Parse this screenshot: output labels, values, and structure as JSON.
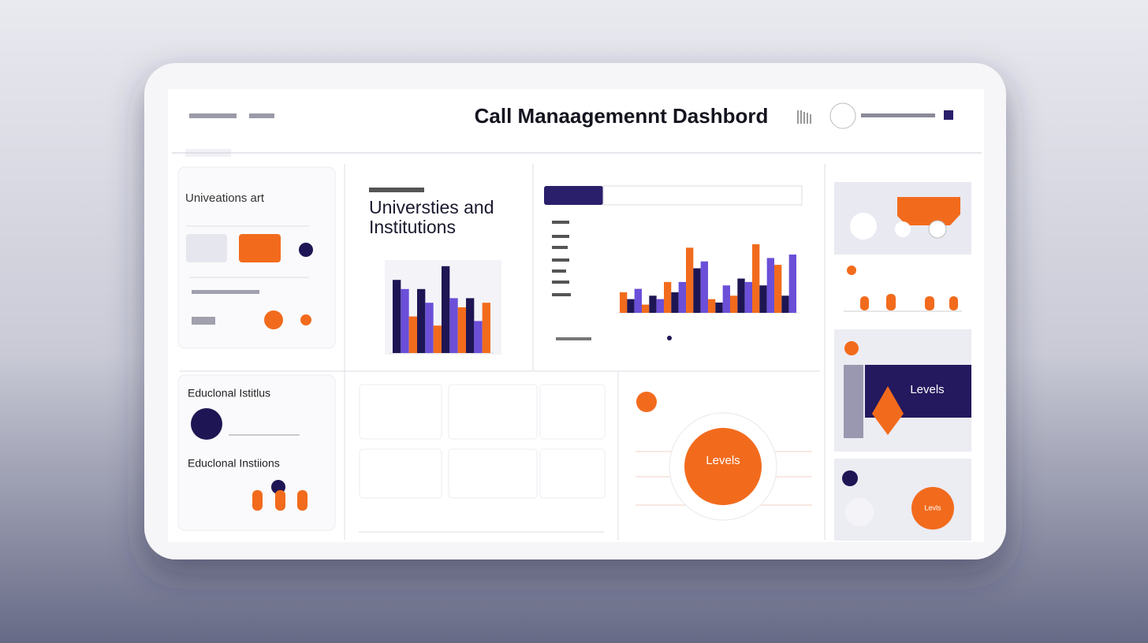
{
  "header": {
    "title": "Call Manaagemennt Dashbord"
  },
  "panels": {
    "univ_card": {
      "title": "Univeations art"
    },
    "institutions": {
      "title_line1": "Universties and",
      "title_line2": "Institutions"
    },
    "edu_top": {
      "title": "Educlonal Istitlus"
    },
    "edu_bottom": {
      "title": "Educlonal Instiions"
    },
    "levels_box": {
      "label": "Levels"
    },
    "levels_circle": {
      "label": "Levels"
    },
    "levels_small": {
      "label": "Levls"
    }
  },
  "chart_data": [
    {
      "type": "bar",
      "categories": [
        null,
        null,
        null,
        null
      ],
      "ylim": [
        0,
        100
      ],
      "series": [
        {
          "color": "#1e1654",
          "values": [
            80,
            70,
            95,
            60
          ]
        },
        {
          "color": "#6b4fd8",
          "values": [
            70,
            55,
            60,
            35
          ]
        },
        {
          "color": "#f26b1d",
          "values": [
            40,
            30,
            50,
            55
          ]
        }
      ]
    },
    {
      "type": "bar",
      "categories": [
        null,
        null,
        null,
        null,
        null,
        null,
        null,
        null
      ],
      "ylim": [
        0,
        100
      ],
      "series": [
        {
          "color": "#f26b1d",
          "values": [
            30,
            12,
            45,
            95,
            20,
            25,
            100,
            70
          ]
        },
        {
          "color": "#1e1654",
          "values": [
            20,
            25,
            30,
            65,
            15,
            50,
            40,
            25
          ]
        },
        {
          "color": "#6b4fd8",
          "values": [
            35,
            20,
            45,
            75,
            40,
            45,
            80,
            85
          ]
        }
      ]
    }
  ]
}
